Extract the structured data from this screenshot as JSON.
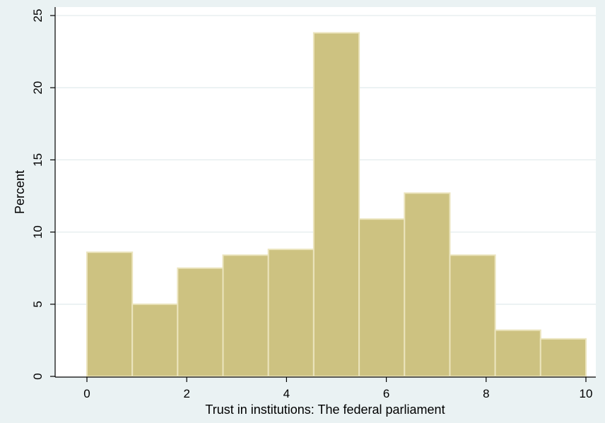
{
  "chart_data": {
    "type": "bar",
    "subtype": "histogram",
    "title": "",
    "xlabel": "Trust in institutions: The federal parliament",
    "ylabel": "Percent",
    "xlim": [
      0,
      10
    ],
    "ylim": [
      0,
      25
    ],
    "xticks": [
      0,
      2,
      4,
      6,
      8,
      10
    ],
    "yticks": [
      0,
      5,
      10,
      15,
      20,
      25
    ],
    "bins": [
      {
        "start": 0.0,
        "end": 0.909,
        "value": 8.6
      },
      {
        "start": 0.909,
        "end": 1.818,
        "value": 5.0
      },
      {
        "start": 1.818,
        "end": 2.727,
        "value": 7.5
      },
      {
        "start": 2.727,
        "end": 3.636,
        "value": 8.4
      },
      {
        "start": 3.636,
        "end": 4.545,
        "value": 8.8
      },
      {
        "start": 4.545,
        "end": 5.455,
        "value": 23.8
      },
      {
        "start": 5.455,
        "end": 6.364,
        "value": 10.9
      },
      {
        "start": 6.364,
        "end": 7.273,
        "value": 12.7
      },
      {
        "start": 7.273,
        "end": 8.182,
        "value": 8.4
      },
      {
        "start": 8.182,
        "end": 9.091,
        "value": 3.2
      },
      {
        "start": 9.091,
        "end": 10.0,
        "value": 2.6
      }
    ],
    "grid": true,
    "colors": {
      "bar_fill": "#cdc281",
      "bar_edge": "#ebe4bd",
      "plot_background": "#ffffff",
      "outer_background": "#eaf2f3",
      "grid": "#e3ecee"
    }
  }
}
